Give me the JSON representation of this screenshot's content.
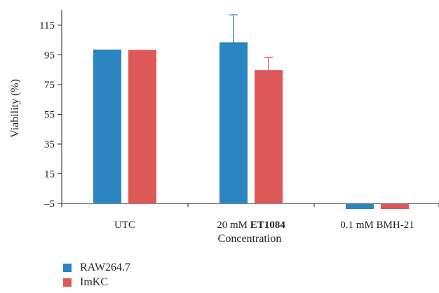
{
  "chart_data": {
    "type": "bar",
    "title": "",
    "xlabel": "Concentration",
    "ylabel": "Viability (%)",
    "categories": [
      {
        "label": "UTC",
        "bold_part": ""
      },
      {
        "label": "20 mM ",
        "bold_part": "ET1084"
      },
      {
        "label": "0.1 mM BMH-21",
        "bold_part": ""
      }
    ],
    "yticks": [
      "115",
      "95",
      "75",
      "55",
      "35",
      "15",
      "–5"
    ],
    "ytick_values": [
      115,
      95,
      75,
      55,
      35,
      15,
      -5
    ],
    "ylim": [
      -5,
      124
    ],
    "series": [
      {
        "name": "RAW264.7",
        "color": "#2a85c2",
        "values": [
          98.6,
          103.5,
          -5
        ],
        "errors": [
          0.3,
          18.5,
          0
        ]
      },
      {
        "name": "ImKC",
        "color": "#dd5957",
        "values": [
          98.4,
          84.8,
          -5
        ],
        "errors": [
          0.3,
          8.5,
          0
        ]
      }
    ],
    "legend_position": "bottom-left",
    "grid": false
  }
}
